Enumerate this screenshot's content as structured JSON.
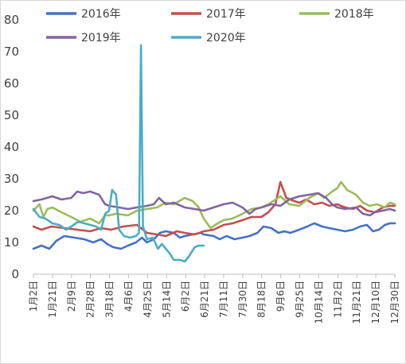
{
  "chart_data": {
    "type": "line",
    "title": "",
    "xlabel": "",
    "ylabel": "",
    "ylim": [
      0,
      80
    ],
    "yticks": [
      "0",
      "10",
      "20",
      "30",
      "40",
      "50",
      "60",
      "70",
      "80"
    ],
    "grid": false,
    "legend_position": "top",
    "x_tick_labels": [
      "1月2日",
      "1月21日",
      "2月9日",
      "2月28日",
      "3月18日",
      "4月6日",
      "4月25日",
      "5月14日",
      "6月2日",
      "6月21日",
      "7月11日",
      "7月30日",
      "8月18日",
      "9月6日",
      "9月25日",
      "10月14日",
      "11月2日",
      "11月21日",
      "12月10日",
      "12月30日"
    ],
    "x_domain": [
      "2016-01-02",
      "2016-12-30"
    ],
    "series": [
      {
        "name": "2016年",
        "color": "#4472c4",
        "points": [
          [
            "01-02",
            8.0
          ],
          [
            "01-10",
            9.0
          ],
          [
            "01-18",
            8.0
          ],
          [
            "01-25",
            10.5
          ],
          [
            "02-02",
            12.0
          ],
          [
            "02-12",
            11.5
          ],
          [
            "02-22",
            11.0
          ],
          [
            "03-02",
            10.0
          ],
          [
            "03-10",
            11.0
          ],
          [
            "03-16",
            9.5
          ],
          [
            "03-22",
            8.5
          ],
          [
            "03-30",
            8.0
          ],
          [
            "04-06",
            9.0
          ],
          [
            "04-14",
            10.0
          ],
          [
            "04-20",
            11.5
          ],
          [
            "04-25",
            10.0
          ],
          [
            "05-02",
            11.0
          ],
          [
            "05-08",
            13.0
          ],
          [
            "05-14",
            13.5
          ],
          [
            "05-22",
            13.0
          ],
          [
            "05-28",
            11.5
          ],
          [
            "06-02",
            12.0
          ],
          [
            "06-10",
            12.5
          ],
          [
            "06-18",
            13.0
          ],
          [
            "06-21",
            12.5
          ],
          [
            "07-01",
            12.0
          ],
          [
            "07-07",
            11.0
          ],
          [
            "07-14",
            12.0
          ],
          [
            "07-22",
            11.0
          ],
          [
            "07-30",
            11.5
          ],
          [
            "08-06",
            12.0
          ],
          [
            "08-14",
            13.0
          ],
          [
            "08-20",
            15.0
          ],
          [
            "08-28",
            14.5
          ],
          [
            "09-04",
            13.0
          ],
          [
            "09-10",
            13.5
          ],
          [
            "09-16",
            13.0
          ],
          [
            "09-25",
            14.0
          ],
          [
            "10-03",
            15.0
          ],
          [
            "10-10",
            16.0
          ],
          [
            "10-18",
            15.0
          ],
          [
            "10-25",
            14.5
          ],
          [
            "11-02",
            14.0
          ],
          [
            "11-10",
            13.5
          ],
          [
            "11-18",
            14.0
          ],
          [
            "11-25",
            15.0
          ],
          [
            "12-02",
            15.5
          ],
          [
            "12-08",
            13.5
          ],
          [
            "12-14",
            14.0
          ],
          [
            "12-20",
            15.5
          ],
          [
            "12-25",
            16.0
          ],
          [
            "12-30",
            16.0
          ]
        ]
      },
      {
        "name": "2017年",
        "color": "#c0504d",
        "points": [
          [
            "01-02",
            15.0
          ],
          [
            "01-10",
            14.0
          ],
          [
            "01-20",
            15.0
          ],
          [
            "02-02",
            14.5
          ],
          [
            "02-15",
            14.0
          ],
          [
            "02-28",
            13.5
          ],
          [
            "03-10",
            14.5
          ],
          [
            "03-20",
            14.0
          ],
          [
            "04-01",
            15.0
          ],
          [
            "04-15",
            15.5
          ],
          [
            "04-25",
            13.0
          ],
          [
            "05-05",
            12.5
          ],
          [
            "05-14",
            12.0
          ],
          [
            "05-25",
            13.5
          ],
          [
            "06-02",
            13.0
          ],
          [
            "06-12",
            12.5
          ],
          [
            "06-21",
            13.5
          ],
          [
            "07-01",
            14.0
          ],
          [
            "07-11",
            15.5
          ],
          [
            "07-20",
            16.0
          ],
          [
            "07-30",
            17.0
          ],
          [
            "08-08",
            18.0
          ],
          [
            "08-18",
            18.0
          ],
          [
            "08-25",
            19.5
          ],
          [
            "09-01",
            22.0
          ],
          [
            "09-06",
            29.0
          ],
          [
            "09-12",
            24.0
          ],
          [
            "09-20",
            23.0
          ],
          [
            "09-25",
            22.5
          ],
          [
            "10-02",
            23.5
          ],
          [
            "10-10",
            22.0
          ],
          [
            "10-18",
            22.5
          ],
          [
            "10-25",
            21.5
          ],
          [
            "11-02",
            22.0
          ],
          [
            "11-10",
            21.0
          ],
          [
            "11-18",
            20.5
          ],
          [
            "11-25",
            21.5
          ],
          [
            "12-02",
            20.0
          ],
          [
            "12-10",
            19.5
          ],
          [
            "12-18",
            21.0
          ],
          [
            "12-25",
            21.5
          ],
          [
            "12-30",
            21.5
          ]
        ]
      },
      {
        "name": "2018年",
        "color": "#9bbb59",
        "points": [
          [
            "01-02",
            20.0
          ],
          [
            "01-08",
            22.0
          ],
          [
            "01-12",
            18.0
          ],
          [
            "01-16",
            20.5
          ],
          [
            "01-21",
            21.0
          ],
          [
            "01-30",
            19.5
          ],
          [
            "02-09",
            18.0
          ],
          [
            "02-18",
            16.5
          ],
          [
            "02-28",
            17.5
          ],
          [
            "03-08",
            16.0
          ],
          [
            "03-14",
            18.5
          ],
          [
            "03-18",
            18.5
          ],
          [
            "03-25",
            19.0
          ],
          [
            "04-06",
            18.5
          ],
          [
            "04-15",
            20.0
          ],
          [
            "04-25",
            20.5
          ],
          [
            "05-05",
            21.0
          ],
          [
            "05-14",
            22.5
          ],
          [
            "05-22",
            22.0
          ],
          [
            "06-02",
            24.0
          ],
          [
            "06-10",
            23.0
          ],
          [
            "06-16",
            21.0
          ],
          [
            "06-21",
            17.5
          ],
          [
            "06-28",
            14.5
          ],
          [
            "07-05",
            16.0
          ],
          [
            "07-11",
            17.0
          ],
          [
            "07-20",
            17.5
          ],
          [
            "07-30",
            19.0
          ],
          [
            "08-08",
            20.5
          ],
          [
            "08-18",
            21.0
          ],
          [
            "08-25",
            22.0
          ],
          [
            "09-06",
            24.5
          ],
          [
            "09-15",
            22.0
          ],
          [
            "09-25",
            21.5
          ],
          [
            "10-05",
            24.0
          ],
          [
            "10-14",
            25.5
          ],
          [
            "10-20",
            24.0
          ],
          [
            "10-28",
            26.0
          ],
          [
            "11-02",
            27.0
          ],
          [
            "11-06",
            29.0
          ],
          [
            "11-12",
            26.5
          ],
          [
            "11-21",
            25.0
          ],
          [
            "11-28",
            22.5
          ],
          [
            "12-05",
            21.5
          ],
          [
            "12-12",
            22.0
          ],
          [
            "12-20",
            21.0
          ],
          [
            "12-25",
            22.5
          ],
          [
            "12-30",
            22.0
          ]
        ]
      },
      {
        "name": "2019年",
        "color": "#8064a2",
        "points": [
          [
            "01-02",
            23.0
          ],
          [
            "01-10",
            23.5
          ],
          [
            "01-21",
            24.5
          ],
          [
            "01-30",
            23.5
          ],
          [
            "02-09",
            24.0
          ],
          [
            "02-15",
            26.0
          ],
          [
            "02-21",
            25.5
          ],
          [
            "02-28",
            26.0
          ],
          [
            "03-08",
            25.0
          ],
          [
            "03-14",
            22.0
          ],
          [
            "03-18",
            21.5
          ],
          [
            "03-28",
            21.0
          ],
          [
            "04-06",
            20.5
          ],
          [
            "04-15",
            21.0
          ],
          [
            "04-25",
            21.5
          ],
          [
            "05-02",
            22.0
          ],
          [
            "05-07",
            24.0
          ],
          [
            "05-14",
            22.0
          ],
          [
            "05-22",
            22.5
          ],
          [
            "06-02",
            21.0
          ],
          [
            "06-12",
            20.5
          ],
          [
            "06-21",
            20.0
          ],
          [
            "07-01",
            21.0
          ],
          [
            "07-11",
            22.0
          ],
          [
            "07-20",
            22.5
          ],
          [
            "07-30",
            21.0
          ],
          [
            "08-06",
            19.0
          ],
          [
            "08-12",
            20.5
          ],
          [
            "08-18",
            21.0
          ],
          [
            "08-28",
            22.0
          ],
          [
            "09-06",
            21.5
          ],
          [
            "09-15",
            23.5
          ],
          [
            "09-25",
            24.5
          ],
          [
            "10-05",
            25.0
          ],
          [
            "10-14",
            25.5
          ],
          [
            "10-22",
            24.0
          ],
          [
            "10-28",
            22.0
          ],
          [
            "11-02",
            21.0
          ],
          [
            "11-10",
            20.5
          ],
          [
            "11-21",
            21.0
          ],
          [
            "11-28",
            19.0
          ],
          [
            "12-05",
            18.5
          ],
          [
            "12-10",
            19.5
          ],
          [
            "12-18",
            20.0
          ],
          [
            "12-25",
            20.5
          ],
          [
            "12-30",
            20.0
          ]
        ]
      },
      {
        "name": "2020年",
        "color": "#4bacc6",
        "points": [
          [
            "01-02",
            20.5
          ],
          [
            "01-08",
            18.0
          ],
          [
            "01-14",
            17.5
          ],
          [
            "01-21",
            16.0
          ],
          [
            "01-28",
            15.5
          ],
          [
            "02-04",
            14.0
          ],
          [
            "02-09",
            15.0
          ],
          [
            "02-16",
            16.5
          ],
          [
            "02-22",
            16.0
          ],
          [
            "02-28",
            15.5
          ],
          [
            "03-05",
            15.0
          ],
          [
            "03-10",
            14.0
          ],
          [
            "03-14",
            19.0
          ],
          [
            "03-18",
            20.0
          ],
          [
            "03-21",
            26.5
          ],
          [
            "03-25",
            25.0
          ],
          [
            "03-28",
            14.0
          ],
          [
            "04-02",
            12.0
          ],
          [
            "04-08",
            11.5
          ],
          [
            "04-14",
            12.0
          ],
          [
            "04-17",
            13.0
          ],
          [
            "04-19",
            72.0
          ],
          [
            "04-21",
            15.0
          ],
          [
            "04-25",
            11.0
          ],
          [
            "05-01",
            11.5
          ],
          [
            "05-06",
            8.0
          ],
          [
            "05-10",
            9.5
          ],
          [
            "05-14",
            8.0
          ],
          [
            "05-18",
            6.5
          ],
          [
            "05-22",
            4.5
          ],
          [
            "05-28",
            4.5
          ],
          [
            "06-02",
            4.0
          ],
          [
            "06-06",
            5.5
          ],
          [
            "06-12",
            8.5
          ],
          [
            "06-16",
            9.0
          ],
          [
            "06-21",
            9.0
          ]
        ]
      }
    ]
  }
}
